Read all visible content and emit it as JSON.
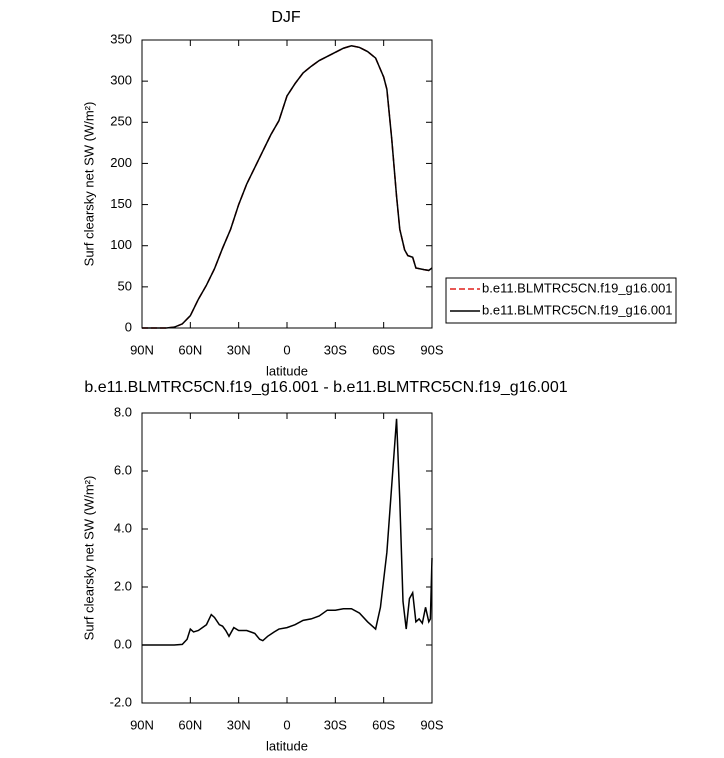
{
  "chart_data": [
    {
      "type": "line",
      "title": "DJF",
      "xlabel": "latitude",
      "ylabel": "Surf clearsky net SW (W/m²)",
      "x": [
        90,
        85,
        80,
        75,
        70,
        65,
        60,
        55,
        50,
        45,
        40,
        35,
        30,
        25,
        20,
        15,
        10,
        5,
        0,
        -5,
        -10,
        -15,
        -20,
        -25,
        -30,
        -35,
        -40,
        -45,
        -50,
        -55,
        -60,
        -62,
        -65,
        -68,
        -70,
        -73,
        -75,
        -78,
        -80,
        -85,
        -88,
        -90
      ],
      "series": [
        {
          "name": "b.e11.BLMTRC5CN.f19_g16.001",
          "color": "#e0201b",
          "dash": "dashed",
          "values": [
            0,
            0,
            0,
            0,
            1,
            5,
            15,
            35,
            52,
            72,
            97,
            120,
            150,
            175,
            195,
            215,
            235,
            252,
            282,
            297,
            310,
            318,
            325,
            330,
            335,
            340,
            343,
            341,
            336,
            328,
            305,
            290,
            230,
            160,
            120,
            95,
            88,
            86,
            73,
            71,
            70,
            73
          ]
        },
        {
          "name": "b.e11.BLMTRC5CN.f19_g16.001",
          "color": "#000000",
          "dash": "solid",
          "values": [
            0,
            0,
            0,
            0,
            1,
            5,
            15,
            35,
            52,
            72,
            97,
            120,
            150,
            175,
            195,
            215,
            235,
            252,
            282,
            297,
            310,
            318,
            325,
            330,
            335,
            340,
            343,
            341,
            336,
            328,
            305,
            290,
            230,
            160,
            120,
            95,
            88,
            86,
            73,
            71,
            70,
            73
          ]
        }
      ],
      "xlim": [
        90,
        -90
      ],
      "xticks": [
        {
          "value": 90,
          "label": "90N"
        },
        {
          "value": 60,
          "label": "60N"
        },
        {
          "value": 30,
          "label": "30N"
        },
        0,
        {
          "value": -30,
          "label": "30S"
        },
        {
          "value": -60,
          "label": "60S"
        },
        {
          "value": -90,
          "label": "90S"
        }
      ],
      "ylim": [
        0,
        350
      ],
      "yticks": [
        0,
        50,
        100,
        150,
        200,
        250,
        300,
        350
      ],
      "legend": "outside-right"
    },
    {
      "type": "line",
      "title": "b.e11.BLMTRC5CN.f19_g16.001 - b.e11.BLMTRC5CN.f19_g16.001",
      "xlabel": "latitude",
      "ylabel": "Surf clearsky net SW (W/m²)",
      "x": [
        90,
        85,
        80,
        75,
        70,
        65,
        62,
        60,
        58,
        55,
        50,
        47,
        45,
        42,
        40,
        38,
        36,
        33,
        30,
        25,
        20,
        17,
        15,
        12,
        8,
        5,
        0,
        -5,
        -10,
        -15,
        -20,
        -25,
        -30,
        -35,
        -40,
        -45,
        -50,
        -55,
        -58,
        -62,
        -65,
        -68,
        -70,
        -72,
        -74,
        -76,
        -78,
        -80,
        -82,
        -84,
        -86,
        -88,
        -89,
        -90
      ],
      "series": [
        {
          "color": "#000000",
          "dash": "solid",
          "values": [
            0,
            0,
            0,
            0,
            0,
            0.02,
            0.2,
            0.55,
            0.45,
            0.5,
            0.7,
            1.05,
            0.95,
            0.7,
            0.65,
            0.5,
            0.3,
            0.6,
            0.5,
            0.5,
            0.4,
            0.2,
            0.15,
            0.3,
            0.45,
            0.55,
            0.6,
            0.7,
            0.85,
            0.9,
            1.0,
            1.2,
            1.2,
            1.25,
            1.25,
            1.1,
            0.8,
            0.55,
            1.3,
            3.2,
            5.5,
            7.8,
            5.0,
            1.5,
            0.55,
            1.6,
            1.8,
            0.8,
            0.9,
            0.75,
            1.3,
            0.8,
            0.9,
            3.0
          ]
        }
      ],
      "xlim": [
        90,
        -90
      ],
      "xticks": [
        {
          "value": 90,
          "label": "90N"
        },
        {
          "value": 60,
          "label": "60N"
        },
        {
          "value": 30,
          "label": "30N"
        },
        0,
        {
          "value": -30,
          "label": "30S"
        },
        {
          "value": -60,
          "label": "60S"
        },
        {
          "value": -90,
          "label": "90S"
        }
      ],
      "ylim": [
        -2,
        8
      ],
      "yticks": [
        {
          "value": -2,
          "label": "-2.0"
        },
        {
          "value": 0,
          "label": "0.0"
        },
        {
          "value": 2,
          "label": "2.0"
        },
        {
          "value": 4,
          "label": "4.0"
        },
        {
          "value": 6,
          "label": "6.0"
        },
        {
          "value": 8,
          "label": "8.0"
        }
      ]
    }
  ]
}
